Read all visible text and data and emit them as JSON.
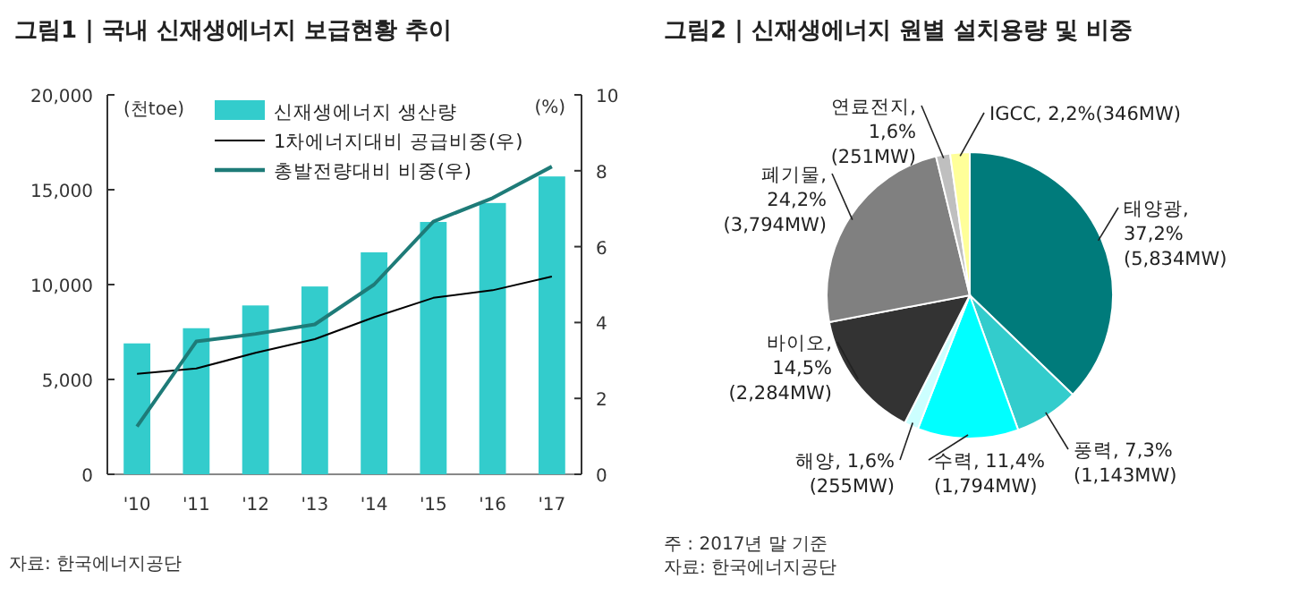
{
  "chart_data": [
    {
      "type": "bar",
      "title": "그림1 | 국내 신재생에너지 보급현황 추이",
      "ylabel": "(천toe)",
      "y2label": "(%)",
      "categories": [
        "'10",
        "'11",
        "'12",
        "'13",
        "'14",
        "'15",
        "'16",
        "'17"
      ],
      "series": [
        {
          "name": "신재생에너지 생산량",
          "type": "bar",
          "color": "#33cccc",
          "values": [
            6900,
            7700,
            8900,
            9900,
            11700,
            13300,
            14300,
            15700
          ]
        },
        {
          "name": "1차에너지대비 공급비중(우)",
          "type": "line",
          "axis": "y2",
          "color": "#000000",
          "values": [
            2.65,
            2.79,
            3.2,
            3.56,
            4.14,
            4.65,
            4.85,
            5.21
          ]
        },
        {
          "name": "총발전량대비 비중(우)",
          "type": "line",
          "axis": "y2",
          "color": "#1e7b78",
          "values": [
            1.26,
            3.5,
            3.7,
            3.95,
            5.0,
            6.66,
            7.28,
            8.11
          ]
        }
      ],
      "ylim": [
        0,
        20000
      ],
      "yticks": [
        {
          "value": 0,
          "label": "0"
        },
        {
          "value": 5000,
          "label": "5,000"
        },
        {
          "value": 10000,
          "label": "10,000"
        },
        {
          "value": 15000,
          "label": "15,000"
        },
        {
          "value": 20000,
          "label": "20,000"
        }
      ],
      "y2lim": [
        0,
        10
      ],
      "y2ticks": [
        0,
        2,
        4,
        6,
        8,
        10
      ],
      "legend": "top",
      "annotations": [
        "자료: 한국에너지공단"
      ]
    },
    {
      "type": "pie",
      "title": "그림2 | 신재생에너지 원별 설치용량 및 비중",
      "categories": [
        "태양광",
        "풍력",
        "수력",
        "해양",
        "바이오",
        "폐기물",
        "연료전지",
        "IGCC"
      ],
      "values": [
        37.2,
        7.3,
        11.4,
        1.6,
        14.5,
        24.2,
        1.6,
        2.2
      ],
      "colors": [
        "#007b7b",
        "#33cccc",
        "#00ffff",
        "#ccffff",
        "#333333",
        "#808080",
        "#bfbfbf",
        "#ffff99"
      ],
      "value_labels": [
        ",\n37,2%\n(5,834MW)",
        ", 7,3%\n(1,143MW)",
        ", 11,4%\n(1,794MW)",
        ", 1,6%\n(255MW)",
        ",\n14,5%\n(2,284MW)",
        ",\n24,2%\n(3,794MW)",
        ",\n1,6%\n(251MW)",
        ", 2,2%(346MW)"
      ],
      "annotations": [
        "주 : 2017년 말 기준",
        "자료: 한국에너지공단"
      ]
    }
  ]
}
